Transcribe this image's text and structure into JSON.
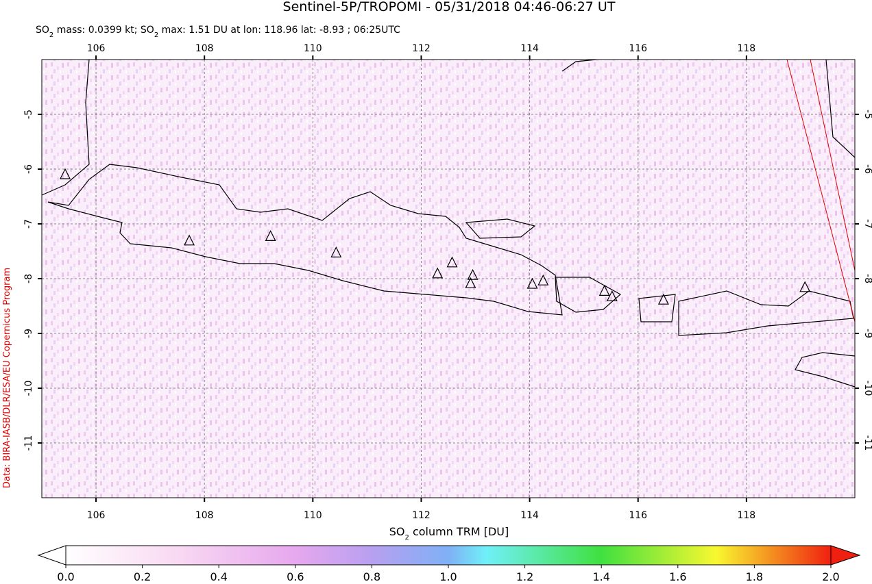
{
  "title": "Sentinel-5P/TROPOMI - 05/31/2018 04:46-06:27 UT",
  "subtitle_parts": [
    "SO",
    "2",
    " mass: 0.0399 kt; SO",
    "2",
    " max: 1.51 DU at lon: 118.96 lat: -8.93 ; 06:25UTC"
  ],
  "credit": "Data: BIRA-IASB/DLR/ESA/EU Copernicus Program",
  "chart_data": {
    "type": "map",
    "xlim": [
      105,
      120
    ],
    "ylim": [
      -12,
      -4
    ],
    "xticks": [
      106,
      108,
      110,
      112,
      114,
      116,
      118
    ],
    "yticks": [
      -5,
      -6,
      -7,
      -8,
      -9,
      -10,
      -11
    ],
    "grid": true,
    "volcanoes": {
      "x": [
        105.43,
        107.72,
        109.22,
        110.43,
        112.3,
        112.57,
        112.95,
        112.91,
        114.05,
        114.25,
        115.38,
        115.52,
        116.47,
        119.08
      ],
      "y": [
        -6.1,
        -7.31,
        -7.23,
        -7.53,
        -7.91,
        -7.71,
        -7.94,
        -8.09,
        -8.1,
        -8.04,
        -8.23,
        -8.33,
        -8.39,
        -8.16
      ]
    },
    "colorbar": {
      "label_parts": [
        "SO",
        "2",
        " column TRM [DU]"
      ],
      "lim": [
        0,
        2
      ],
      "ticks": [
        {
          "value": 0,
          "label": "0.0"
        },
        0.2,
        0.4,
        0.6,
        0.8,
        {
          "value": 1,
          "label": "1.0"
        },
        1.2,
        1.4,
        1.6,
        1.8,
        {
          "value": 2,
          "label": "2.0"
        }
      ]
    }
  }
}
